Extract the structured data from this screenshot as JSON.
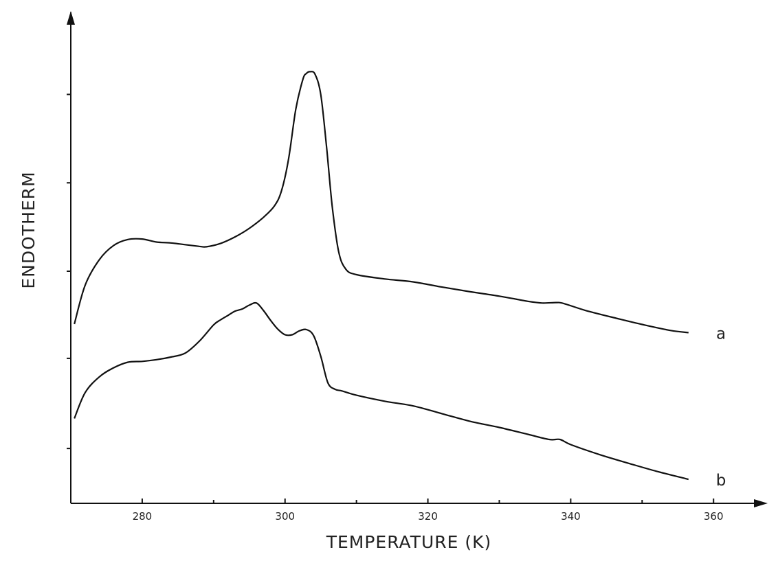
{
  "chart_data": {
    "type": "line",
    "title": "",
    "xlabel": "TEMPERATURE (K)",
    "ylabel": "ENDOTHERM",
    "xlim": [
      270,
      362
    ],
    "ylim": [
      0,
      100
    ],
    "x_ticks": [
      280,
      300,
      320,
      340,
      360
    ],
    "x_minor_ticks": [
      290,
      310,
      330,
      350
    ],
    "y_ticks": [
      11.5,
      32.5,
      52.8,
      73.4,
      94
    ],
    "grid": false,
    "legend": "none",
    "series": [
      {
        "name": "a",
        "x": [
          270.5,
          272,
          274,
          276,
          278,
          280,
          282,
          284,
          286,
          288,
          289,
          291,
          293,
          295,
          297,
          298.5,
          299.5,
          300.5,
          301.5,
          302.5,
          303,
          303.5,
          304.2,
          305,
          305.8,
          306.6,
          307.5,
          308.5,
          310,
          314,
          318,
          322,
          326,
          330,
          334,
          336,
          338,
          339,
          342,
          346,
          350,
          354,
          356.5
        ],
        "y": [
          40.5,
          49.5,
          55.5,
          58.8,
          60.2,
          60.3,
          59.6,
          59.4,
          59,
          58.6,
          58.5,
          59.3,
          60.8,
          62.8,
          65.4,
          68,
          71.5,
          79,
          90.5,
          97.5,
          98.9,
          99.3,
          98.7,
          94,
          82,
          68,
          57.4,
          53.3,
          52,
          51,
          50.3,
          49.1,
          48,
          47,
          45.8,
          45.4,
          45.5,
          45.3,
          43.7,
          42,
          40.4,
          39,
          38.5
        ]
      },
      {
        "name": "b",
        "x": [
          270.5,
          272,
          274,
          276,
          278,
          280,
          282,
          284,
          286,
          288,
          290,
          291,
          292,
          293,
          294,
          295,
          296,
          297,
          298,
          299,
          300,
          301,
          302,
          303,
          304,
          305,
          306,
          307,
          308,
          310,
          314,
          318,
          322,
          326,
          330,
          334,
          337,
          338.5,
          340,
          344,
          348,
          352,
          356.5
        ],
        "y": [
          18.5,
          24.5,
          28.2,
          30.3,
          31.6,
          31.8,
          32.2,
          32.8,
          33.7,
          36.5,
          40.3,
          41.5,
          42.5,
          43.5,
          44,
          44.9,
          45.4,
          43.6,
          41.3,
          39.3,
          38,
          38,
          38.9,
          39.2,
          37.8,
          33,
          26.8,
          25.3,
          24.9,
          23.9,
          22.5,
          21.4,
          19.6,
          17.8,
          16.4,
          14.8,
          13.6,
          13.6,
          12.4,
          10.1,
          8.1,
          6.2,
          4.3
        ]
      }
    ]
  }
}
